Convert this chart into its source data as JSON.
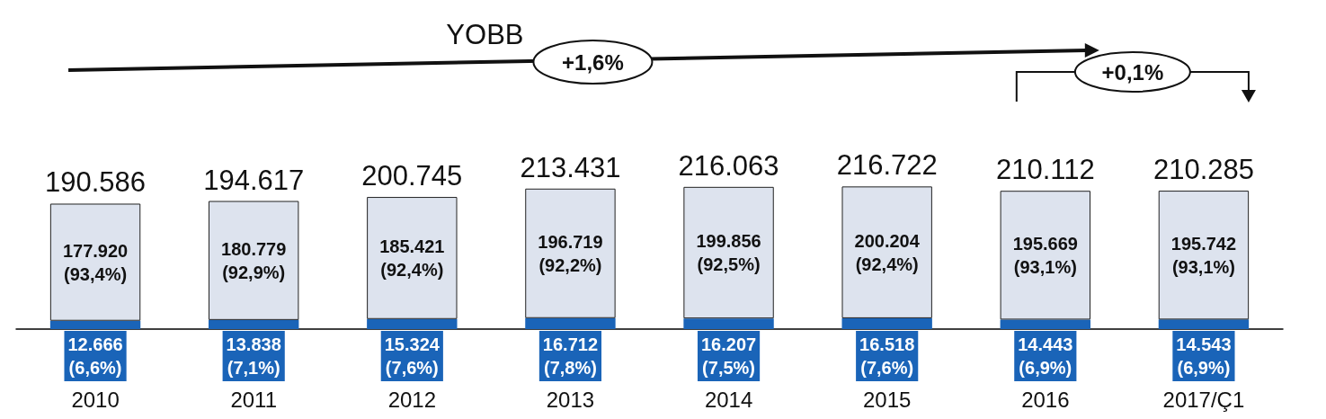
{
  "chart_data": {
    "type": "bar",
    "stacked": true,
    "categories": [
      "2010",
      "2011",
      "2012",
      "2013",
      "2014",
      "2015",
      "2016",
      "2017/Ç1"
    ],
    "series": [
      {
        "color": "#1a64b8",
        "values": [
          12666,
          13838,
          15324,
          16712,
          16207,
          16518,
          14443,
          14543
        ],
        "value_labels": [
          "12.666\n(6,6%)",
          "13.838\n(7,1%)",
          "15.324\n(7,6%)",
          "16.712\n(7,8%)",
          "16.207\n(7,5%)",
          "16.518\n(7,6%)",
          "14.443\n(6,9%)",
          "14.543\n(6,9%)"
        ]
      },
      {
        "color": "#dde3ee",
        "values": [
          177920,
          180779,
          185421,
          196719,
          199856,
          200204,
          195669,
          195742
        ],
        "value_labels": [
          "177.920\n(93,4%)",
          "180.779\n(92,9%)",
          "185.421\n(92,4%)",
          "196.719\n(92,2%)",
          "199.856\n(92,5%)",
          "200.204\n(92,4%)",
          "195.669\n(93,1%)",
          "195.742\n(93,1%)"
        ]
      }
    ],
    "totals": [
      "190.586",
      "194.617",
      "200.745",
      "213.431",
      "216.063",
      "216.722",
      "210.112",
      "210.285"
    ],
    "annotations": [
      "YOBB",
      "+1,6%",
      "+0,1%"
    ]
  }
}
